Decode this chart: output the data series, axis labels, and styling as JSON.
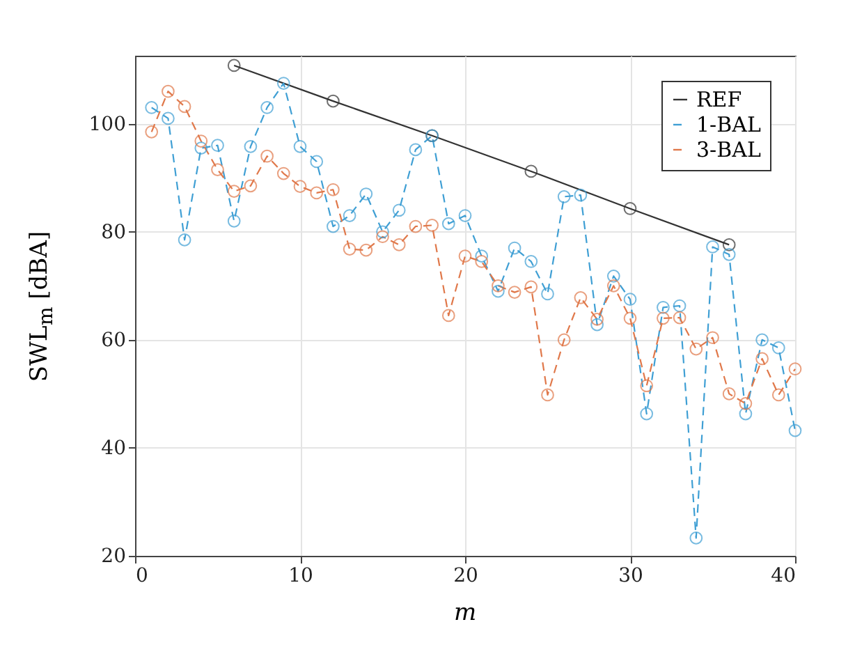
{
  "chart_data": {
    "type": "line",
    "xlabel": "m",
    "ylabel": "SWL$_{m}$ [dBA]",
    "x": [
      1,
      2,
      3,
      4,
      5,
      6,
      7,
      8,
      9,
      10,
      11,
      12,
      13,
      14,
      15,
      16,
      17,
      18,
      19,
      20,
      21,
      22,
      23,
      24,
      25,
      26,
      27,
      28,
      29,
      30,
      31,
      32,
      33,
      34,
      35,
      36,
      37,
      38,
      39,
      40
    ],
    "series": [
      {
        "name": "REF",
        "color": "#333333",
        "line_style": "solid",
        "x": [
          6,
          12,
          18,
          24,
          30,
          36
        ],
        "values": [
          110.8,
          104.2,
          97.8,
          91.2,
          84.3,
          77.6
        ]
      },
      {
        "name": "1-BAL",
        "color": "#3f9fd4",
        "line_style": "dashed",
        "values": [
          103,
          101,
          78.5,
          95.5,
          96,
          82,
          95.8,
          103,
          107.5,
          95.8,
          93,
          81,
          83,
          87,
          80,
          84,
          95.2,
          97.8,
          81.5,
          83,
          75.5,
          69,
          77,
          74.5,
          68.5,
          86.5,
          86.8,
          62.8,
          71.8,
          67.5,
          46.3,
          66,
          66.3,
          23.3,
          77.2,
          75.8,
          46.3,
          60,
          58.5,
          43.2
        ]
      },
      {
        "name": "3-BAL",
        "color": "#e0784a",
        "line_style": "dashed",
        "values": [
          98.5,
          106,
          103.2,
          96.8,
          91.5,
          87.5,
          88.5,
          94,
          90.8,
          88.4,
          87.2,
          87.8,
          76.8,
          76.6,
          79.1,
          77.6,
          81,
          81.2,
          64.5,
          75.5,
          74.5,
          70,
          68.8,
          69.8,
          49.8,
          60,
          67.8,
          63.8,
          70,
          64,
          51.5,
          64,
          64.1,
          58.3,
          60.4,
          50,
          48.2,
          56.5,
          49.8,
          54.6
        ]
      }
    ],
    "xlim": [
      0,
      40
    ],
    "xticks": [
      0,
      10,
      20,
      30,
      40
    ],
    "ylim": [
      20,
      112.6
    ],
    "yticks": [
      20,
      40,
      60,
      80,
      100
    ],
    "grid": true,
    "legend": "top right",
    "marker": "circle"
  }
}
